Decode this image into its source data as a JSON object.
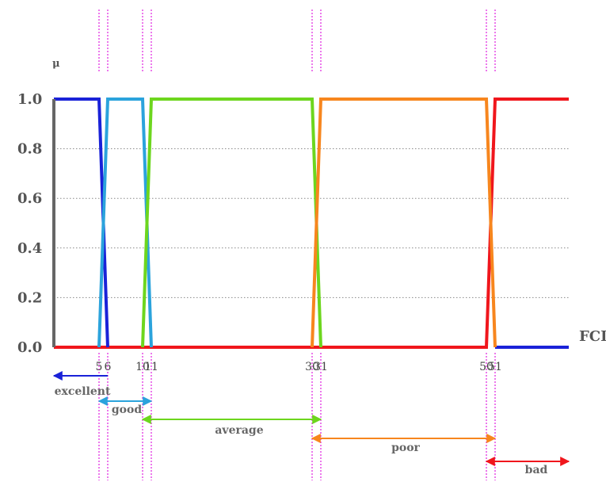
{
  "chart_data": {
    "type": "line",
    "xlabel": "FCI",
    "ylabel": "μ",
    "xlim": [
      0,
      60
    ],
    "ylim": [
      0,
      1
    ],
    "y_ticks": [
      "0.0",
      "0.2",
      "0.4",
      "0.6",
      "0.8",
      "1.0"
    ],
    "y_tick_values": [
      0,
      0.2,
      0.4,
      0.6,
      0.8,
      1.0
    ],
    "x_ticks": [
      "5",
      "6",
      "10",
      "11",
      "30",
      "31",
      "50",
      "51"
    ],
    "x_tick_values": [
      5,
      6,
      10,
      11,
      30,
      31,
      50,
      51
    ],
    "grid": "horizontal dotted",
    "series": [
      {
        "name": "excellent",
        "color": "#1a22d8",
        "points": [
          [
            0,
            1
          ],
          [
            5,
            1
          ],
          [
            6,
            0
          ]
        ],
        "tail": [
          [
            51,
            0
          ],
          [
            60,
            0
          ]
        ]
      },
      {
        "name": "good",
        "color": "#2ba3dc",
        "points": [
          [
            5,
            0
          ],
          [
            6,
            1
          ],
          [
            10,
            1
          ],
          [
            11,
            0
          ]
        ]
      },
      {
        "name": "average",
        "color": "#6dd61e",
        "points": [
          [
            10,
            0
          ],
          [
            11,
            1
          ],
          [
            30,
            1
          ],
          [
            31,
            0
          ]
        ]
      },
      {
        "name": "poor",
        "color": "#f7861e",
        "points": [
          [
            30,
            0
          ],
          [
            31,
            1
          ],
          [
            50,
            1
          ],
          [
            51,
            0
          ]
        ]
      },
      {
        "name": "bad",
        "color": "#f0161c",
        "points": [
          [
            0,
            0
          ],
          [
            50,
            0
          ],
          [
            51,
            1
          ],
          [
            60,
            1
          ]
        ]
      }
    ],
    "ranges": [
      {
        "name": "excellent",
        "from": 0,
        "to": 6,
        "color": "#1a22d8",
        "arrow": "left"
      },
      {
        "name": "good",
        "from": 5,
        "to": 11,
        "color": "#2ba3dc",
        "arrow": "both"
      },
      {
        "name": "average",
        "from": 10,
        "to": 31,
        "color": "#6dd61e",
        "arrow": "both"
      },
      {
        "name": "poor",
        "from": 30,
        "to": 51,
        "color": "#f7861e",
        "arrow": "both"
      },
      {
        "name": "bad",
        "from": 50,
        "to": 60,
        "color": "#f0161c",
        "arrow": "both"
      }
    ],
    "marker_lines": [
      5,
      6,
      10,
      11,
      30,
      31,
      50,
      51
    ],
    "marker_color": "#e020e0",
    "axis_color": "#666666"
  }
}
